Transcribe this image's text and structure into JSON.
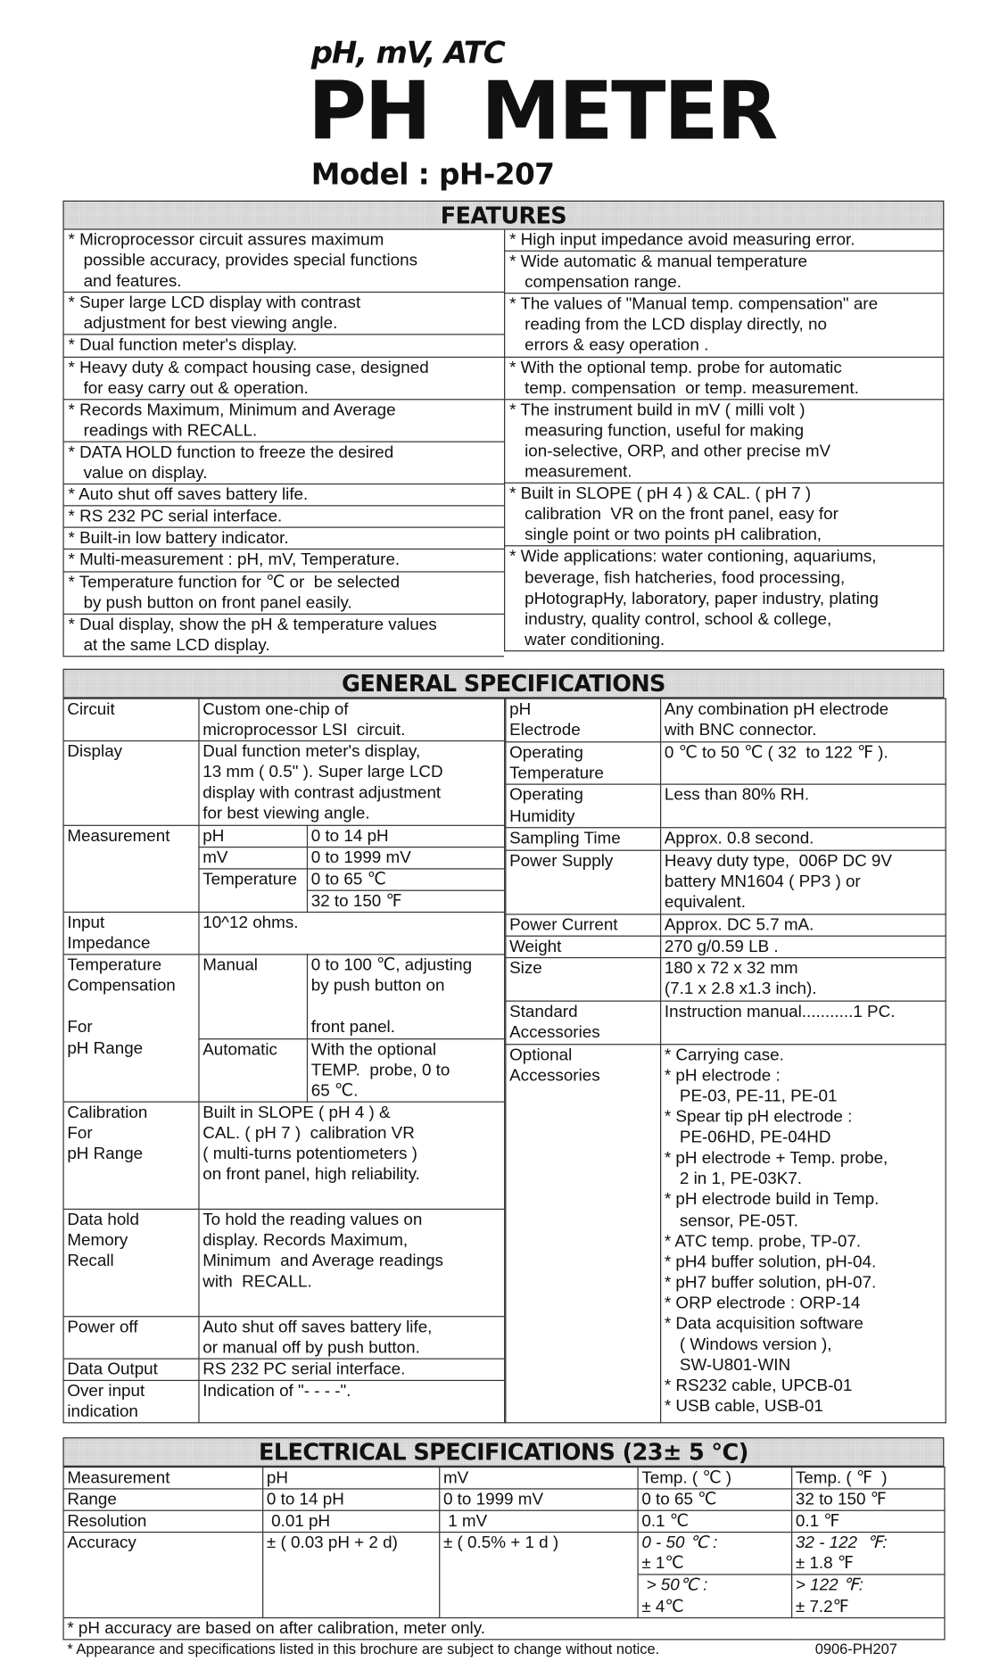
{
  "header": {
    "subtitle": "pH, mV, ATC",
    "title": "PH  METER",
    "model": "Model : pH-207"
  },
  "features": {
    "title": "FEATURES",
    "left": [
      "* Microprocessor circuit assures maximum\npossible accuracy, provides special functions\nand features.",
      "* Super large LCD display with contrast\nadjustment for best viewing angle.",
      "* Dual function meter's display.",
      "* Heavy duty & compact housing case, designed\nfor easy carry out & operation.",
      "* Records Maximum, Minimum and Average\nreadings with RECALL.",
      "* DATA HOLD function to freeze the desired\nvalue on display.",
      "* Auto shut off saves battery life.",
      "* RS 232 PC serial interface.",
      "* Built-in low battery indicator.",
      "* Multi-measurement : pH, mV, Temperature.",
      "* Temperature function for ℃ or  be selected\nby push button on front panel easily.",
      "* Dual display, show the pH & temperature values\nat the same LCD display."
    ],
    "right": [
      "* High input impedance avoid measuring error.",
      "* Wide automatic & manual temperature\ncompensation range.",
      "* The values of \"Manual temp. compensation\" are\nreading from the LCD display directly, no\nerrors & easy operation .",
      "* With the optional temp. probe for automatic\ntemp. compensation  or temp. measurement.",
      "* The instrument build in mV ( milli volt )\nmeasuring function, useful for making\nion-selective, ORP, and other precise mV\nmeasurement.",
      "* Built in SLOPE ( pH 4 ) & CAL. ( pH 7 )\ncalibration  VR on the front panel, easy for\nsingle point or two points pH calibration,",
      "* Wide applications: water contioning, aquariums,\nbeverage, fish hatcheries, food processing,\npHotograpHy, laboratory, paper industry, plating\nindustry, quality control, school & college,\nwater conditioning."
    ]
  },
  "general": {
    "title": "GENERAL SPECIFICATIONS",
    "circuit": {
      "label": "Circuit",
      "value": "Custom one-chip of\nmicroprocessor LSI  circuit."
    },
    "display": {
      "label": "Display",
      "value": "Dual function meter's display,\n13 mm ( 0.5\" ). Super large LCD\ndisplay with contrast adjustment\nfor best viewing angle."
    },
    "measurement": {
      "label": "Measurement",
      "ph_label": "pH",
      "ph_value": "0 to 14 pH",
      "mv_label": "mV",
      "mv_value": "0 to 1999 mV",
      "temp_label": "Temperature",
      "temp_c": "0 to 65 ℃",
      "temp_f": "32 to 150 ℉"
    },
    "input_impedance": {
      "label": "Input\nImpedance",
      "value": "10^12 ohms."
    },
    "temp_comp": {
      "label": "Temperature\nCompensation\n\nFor\npH Range",
      "manual_label": "Manual",
      "manual_value": "0 to 100 ℃, adjusting\nby push button on\n\nfront panel.",
      "auto_label": "Automatic",
      "auto_value": "With the optional\nTEMP.  probe, 0 to\n65 ℃."
    },
    "calibration": {
      "label": "Calibration\nFor\npH Range",
      "value": "Built in SLOPE ( pH 4 ) &\nCAL. ( pH 7 )  calibration VR\n( multi-turns potentiometers )\non front panel, high reliability."
    },
    "data_hold": {
      "label": "Data hold\nMemory\nRecall",
      "value": "To hold the reading values on\ndisplay. Records Maximum,\nMinimum  and Average readings\nwith  RECALL."
    },
    "power_off": {
      "label": "Power off",
      "value": "Auto shut off saves battery life,\nor manual off by push button."
    },
    "data_output": {
      "label": "Data Output",
      "value": "RS 232 PC serial interface."
    },
    "over_input": {
      "label": "Over input\nindication",
      "value": "Indication of \"- - - -\"."
    },
    "ph_electrode": {
      "label": "pH\nElectrode",
      "value": "Any combination pH electrode\nwith BNC connector."
    },
    "op_temp": {
      "label": "Operating\nTemperature",
      "value": "0 ℃ to 50 ℃ ( 32  to 122 ℉ )."
    },
    "op_humidity": {
      "label": "Operating\nHumidity",
      "value": "Less than 80% RH."
    },
    "sampling": {
      "label": "Sampling Time",
      "value": "Approx. 0.8 second."
    },
    "power_supply": {
      "label": "Power Supply",
      "value": "Heavy duty type,  006P DC 9V\nbattery MN1604 ( PP3 ) or\nequivalent."
    },
    "power_current": {
      "label": "Power Current",
      "value": "Approx. DC 5.7 mA."
    },
    "weight": {
      "label": "Weight",
      "value": "270 g/0.59 LB ."
    },
    "size": {
      "label": "Size",
      "value": "180 x 72 x 32 mm\n(7.1 x 2.8 x1.3 inch)."
    },
    "std_acc": {
      "label": "Standard\nAccessories",
      "value": "Instruction manual...........1 PC."
    },
    "opt_acc": {
      "label": "Optional\nAccessories",
      "items": [
        "* Carrying case.",
        "* pH electrode :\nPE-03, PE-11, PE-01",
        "* Spear tip pH electrode :\nPE-06HD, PE-04HD",
        "* pH electrode + Temp. probe,\n2 in 1, PE-03K7.",
        "* pH electrode build in Temp.\nsensor, PE-05T.",
        "* ATC temp. probe, TP-07.",
        "* pH4 buffer solution, pH-04.",
        "* pH7 buffer solution, pH-07.",
        "* ORP electrode : ORP-14",
        "* Data acquisition software\n( Windows version ),\nSW-U801-WIN",
        "* RS232 cable, UPCB-01",
        "* USB cable, USB-01"
      ]
    }
  },
  "electrical": {
    "title": "ELECTRICAL SPECIFICATIONS (23± 5 ℃)",
    "headers": [
      "Measurement",
      "pH",
      "mV",
      "Temp. ( ℃ )",
      "Temp. ( ℉  )"
    ],
    "range": [
      "Range",
      "0 to 14 pH",
      "0 to 1999 mV",
      "0 to 65 ℃",
      "32 to 150 ℉"
    ],
    "resolution": [
      "Resolution",
      " 0.01 pH",
      " 1 mV",
      "0.1 ℃",
      "0.1 ℉"
    ],
    "accuracy": {
      "label": "Accuracy",
      "ph": "± ( 0.03 pH + 2 d)",
      "mv": "± ( 0.5% + 1 d )",
      "c_low_range": "0 - 50 ℃ :",
      "c_low_value": "± 1℃",
      "f_low_range": "32 - 122  ℉:",
      "f_low_value": "± 1.8 ℉",
      "c_high_range": " > 50℃ :",
      "c_high_value": "± 4℃",
      "f_high_range": "> 122 ℉:",
      "f_high_value": "± 7.2℉"
    },
    "note": "* pH accuracy are based on after calibration, meter only."
  },
  "footer": {
    "disclaimer": "* Appearance and specifications listed in this brochure are subject to change without notice.",
    "code": "0906-PH207"
  }
}
